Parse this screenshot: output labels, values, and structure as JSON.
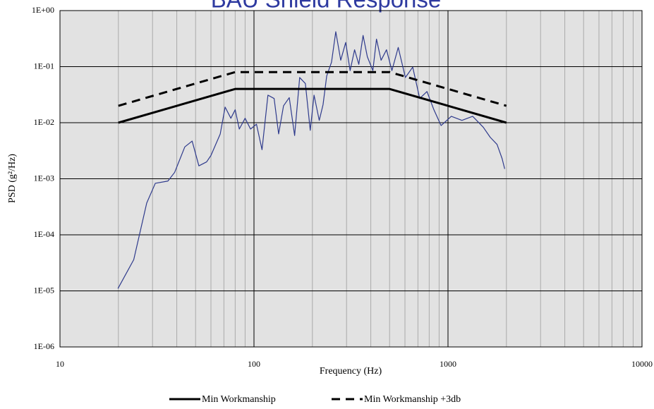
{
  "chart_data": {
    "type": "line",
    "title": "BAU Shield Response",
    "x_label": "Frequency (Hz)",
    "y_label": "PSD (g²/Hz)",
    "xscale": "log",
    "yscale": "log",
    "grid": true,
    "minor_grid": true,
    "legend": "bottom",
    "xlim": [
      10,
      10000
    ],
    "xticks": [
      10,
      100,
      1000,
      10000
    ],
    "ylim": [
      1e-06,
      1
    ],
    "yticks": [
      {
        "value": 1,
        "label": "1E+00"
      },
      {
        "value": 0.1,
        "label": "1E-01"
      },
      {
        "value": 0.01,
        "label": "1E-02"
      },
      {
        "value": 0.001,
        "label": "1E-03"
      },
      {
        "value": 0.0001,
        "label": "1E-04"
      },
      {
        "value": 1e-05,
        "label": "1E-05"
      },
      {
        "value": 1e-06,
        "label": "1E-06"
      }
    ],
    "series": [
      {
        "color": "#2e3a8c",
        "width": 1.2,
        "dash": "none",
        "x": [
          19.9,
          24,
          28,
          31,
          36,
          39,
          44,
          48,
          52,
          57,
          60,
          67,
          71,
          76,
          80,
          84,
          90,
          96,
          103,
          110,
          118,
          127,
          134,
          142,
          152,
          162,
          172,
          184,
          195,
          204,
          217,
          227,
          237,
          251,
          264,
          280,
          297,
          313,
          330,
          347,
          365,
          384,
          410,
          428,
          452,
          482,
          514,
          554,
          603,
          658,
          715,
          779,
          846,
          921,
          1040,
          1180,
          1340,
          1520,
          1650,
          1790,
          1900,
          1960
        ],
        "values": [
          1.1e-05,
          3.6e-05,
          0.00037,
          0.00083,
          0.00091,
          0.0013,
          0.0037,
          0.0047,
          0.0017,
          0.002,
          0.0026,
          0.0063,
          0.019,
          0.012,
          0.017,
          0.0077,
          0.012,
          0.0077,
          0.0094,
          0.0033,
          0.031,
          0.027,
          0.0063,
          0.02,
          0.028,
          0.0059,
          0.064,
          0.05,
          0.0073,
          0.031,
          0.011,
          0.021,
          0.068,
          0.12,
          0.42,
          0.13,
          0.27,
          0.085,
          0.2,
          0.11,
          0.36,
          0.15,
          0.085,
          0.31,
          0.13,
          0.2,
          0.085,
          0.22,
          0.064,
          0.098,
          0.027,
          0.036,
          0.017,
          0.0089,
          0.013,
          0.011,
          0.013,
          0.0083,
          0.0055,
          0.0041,
          0.0023,
          0.0015
        ]
      },
      {
        "name": "Min Workmanship",
        "color": "#000000",
        "width": 3,
        "dash": "none",
        "x": [
          20,
          80,
          500,
          2000
        ],
        "values": [
          0.01,
          0.04,
          0.04,
          0.01
        ]
      },
      {
        "name": "Min Workmanship +3db",
        "color": "#000000",
        "width": 3,
        "dash": "12 8",
        "x": [
          20,
          80,
          500,
          2000
        ],
        "values": [
          0.02,
          0.08,
          0.08,
          0.02
        ]
      }
    ]
  }
}
